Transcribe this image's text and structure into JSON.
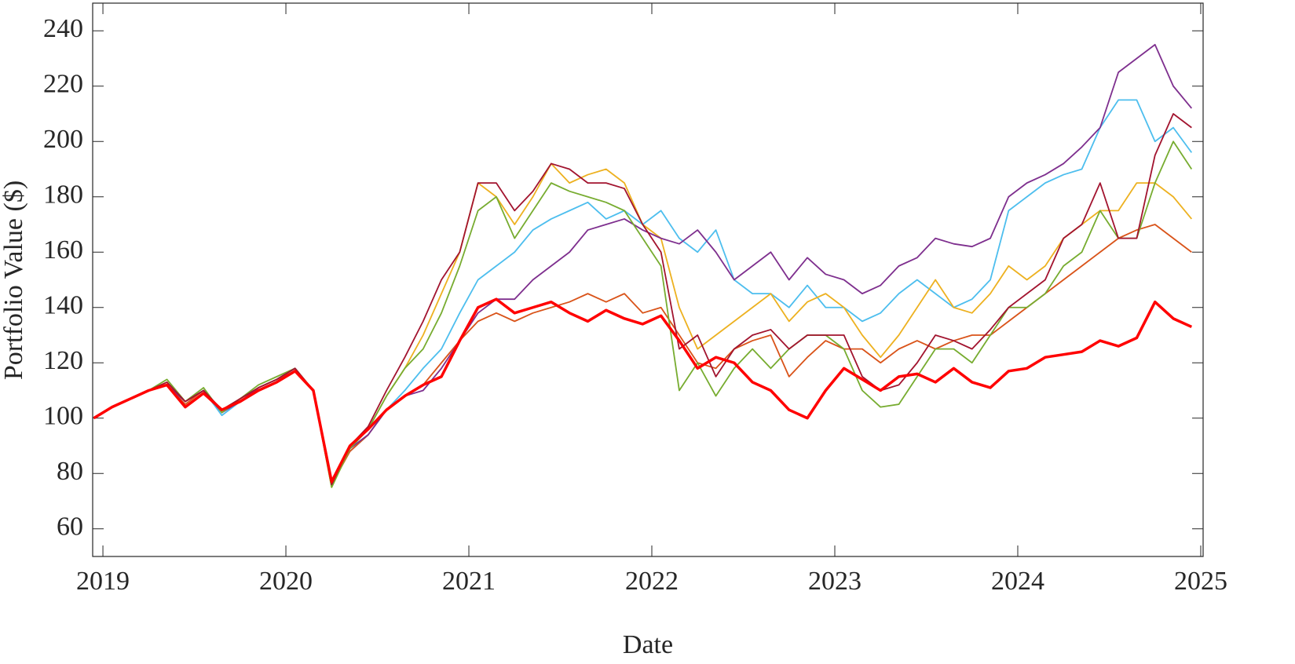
{
  "chart_data": {
    "type": "line",
    "xlabel": "Date",
    "ylabel": "Portfolio Value ($)",
    "x": [
      2018.95,
      2019.05,
      2019.15,
      2019.25,
      2019.35,
      2019.45,
      2019.55,
      2019.65,
      2019.75,
      2019.85,
      2019.95,
      2020.05,
      2020.15,
      2020.25,
      2020.35,
      2020.45,
      2020.55,
      2020.65,
      2020.75,
      2020.85,
      2020.95,
      2021.05,
      2021.15,
      2021.25,
      2021.35,
      2021.45,
      2021.55,
      2021.65,
      2021.75,
      2021.85,
      2021.95,
      2022.05,
      2022.15,
      2022.25,
      2022.35,
      2022.45,
      2022.55,
      2022.65,
      2022.75,
      2022.85,
      2022.95,
      2023.05,
      2023.15,
      2023.25,
      2023.35,
      2023.45,
      2023.55,
      2023.65,
      2023.75,
      2023.85,
      2023.95,
      2024.05,
      2024.15,
      2024.25,
      2024.35,
      2024.45,
      2024.55,
      2024.65,
      2024.75,
      2024.85,
      2024.95
    ],
    "xlim": [
      2018.944,
      2025.013
    ],
    "xticks": [
      2019,
      2020,
      2021,
      2022,
      2023,
      2024,
      2025
    ],
    "ylim": [
      50,
      250
    ],
    "yticks": [
      60,
      80,
      100,
      120,
      140,
      160,
      180,
      200,
      220,
      240
    ],
    "series": [
      {
        "color": "#4DBEEE",
        "values": [
          100,
          104,
          107,
          110,
          112,
          106,
          110,
          101,
          106,
          111,
          114,
          118,
          110,
          77,
          88,
          94,
          103,
          110,
          118,
          125,
          138,
          150,
          155,
          160,
          168,
          172,
          175,
          178,
          172,
          175,
          170,
          175,
          165,
          160,
          168,
          150,
          145,
          145,
          140,
          148,
          140,
          140,
          135,
          138,
          145,
          150,
          145,
          140,
          143,
          150,
          175,
          180,
          185,
          188,
          190,
          205,
          215,
          215,
          200,
          205,
          196
        ]
      },
      {
        "color": "#D95319",
        "values": [
          100,
          104,
          107,
          110,
          112,
          105,
          110,
          103,
          107,
          111,
          114,
          117,
          110,
          76,
          88,
          94,
          103,
          108,
          112,
          120,
          128,
          135,
          138,
          135,
          138,
          140,
          142,
          145,
          142,
          145,
          138,
          140,
          130,
          120,
          118,
          125,
          128,
          130,
          115,
          122,
          128,
          125,
          125,
          120,
          125,
          128,
          125,
          128,
          130,
          130,
          135,
          140,
          145,
          150,
          155,
          160,
          165,
          168,
          170,
          165,
          160
        ]
      },
      {
        "color": "#EDB120",
        "values": [
          100,
          104,
          107,
          110,
          113,
          106,
          110,
          102,
          107,
          111,
          114,
          118,
          110,
          75,
          89,
          96,
          108,
          118,
          130,
          145,
          160,
          185,
          180,
          170,
          180,
          192,
          185,
          188,
          190,
          185,
          170,
          165,
          140,
          125,
          130,
          135,
          140,
          145,
          135,
          142,
          145,
          140,
          130,
          122,
          130,
          140,
          150,
          140,
          138,
          145,
          155,
          150,
          155,
          165,
          170,
          175,
          175,
          185,
          185,
          180,
          172
        ]
      },
      {
        "color": "#7E2F8E",
        "values": [
          100,
          104,
          107,
          110,
          112,
          106,
          110,
          102,
          106,
          111,
          114,
          118,
          110,
          76,
          89,
          94,
          103,
          108,
          110,
          118,
          128,
          138,
          143,
          143,
          150,
          155,
          160,
          168,
          170,
          172,
          168,
          165,
          163,
          168,
          160,
          150,
          155,
          160,
          150,
          158,
          152,
          150,
          145,
          148,
          155,
          158,
          165,
          163,
          162,
          165,
          180,
          185,
          188,
          192,
          198,
          205,
          225,
          230,
          235,
          220,
          212
        ]
      },
      {
        "color": "#77AC30",
        "values": [
          100,
          104,
          107,
          110,
          114,
          106,
          111,
          102,
          107,
          112,
          115,
          118,
          110,
          75,
          89,
          96,
          108,
          118,
          125,
          138,
          155,
          175,
          180,
          165,
          175,
          185,
          182,
          180,
          178,
          175,
          165,
          155,
          110,
          120,
          108,
          118,
          125,
          118,
          125,
          130,
          130,
          125,
          110,
          104,
          105,
          115,
          125,
          125,
          120,
          130,
          140,
          140,
          145,
          155,
          160,
          175,
          165,
          165,
          185,
          200,
          190
        ]
      },
      {
        "color": "#A2142F",
        "values": [
          100,
          104,
          107,
          110,
          113,
          106,
          110,
          103,
          107,
          111,
          114,
          118,
          110,
          76,
          90,
          97,
          110,
          122,
          135,
          150,
          160,
          185,
          185,
          175,
          182,
          192,
          190,
          185,
          185,
          183,
          170,
          160,
          125,
          130,
          115,
          125,
          130,
          132,
          125,
          130,
          130,
          130,
          115,
          110,
          112,
          120,
          130,
          128,
          125,
          132,
          140,
          145,
          150,
          165,
          170,
          185,
          165,
          165,
          195,
          210,
          205
        ]
      },
      {
        "color": "#FF0000",
        "values": [
          100,
          104,
          107,
          110,
          112,
          104,
          109,
          103,
          106,
          110,
          113,
          117,
          110,
          77,
          90,
          96,
          103,
          108,
          112,
          115,
          128,
          140,
          143,
          138,
          140,
          142,
          138,
          135,
          139,
          136,
          134,
          137,
          128,
          118,
          122,
          120,
          113,
          110,
          103,
          100,
          110,
          118,
          114,
          110,
          115,
          116,
          113,
          118,
          113,
          111,
          117,
          118,
          122,
          123,
          124,
          128,
          126,
          129,
          142,
          136,
          133
        ]
      }
    ]
  }
}
